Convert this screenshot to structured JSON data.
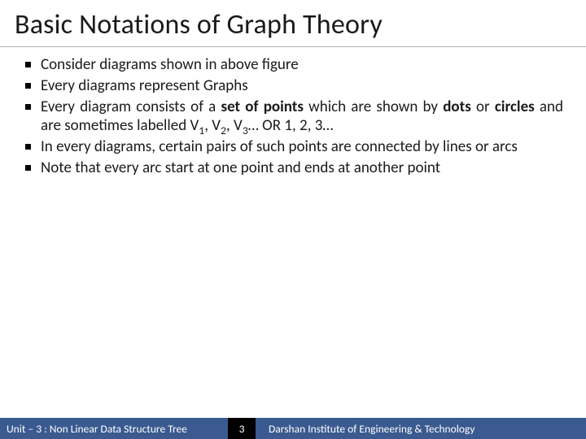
{
  "title": "Basic Notations of Graph Theory",
  "bullets": {
    "b1": "Consider diagrams shown in above figure",
    "b2": "Every diagrams represent Graphs",
    "b3_pre": "Every diagram consists of a ",
    "b3_bold1": "set of points",
    "b3_mid1": " which are shown by ",
    "b3_bold2": "dots",
    "b3_mid2": " or ",
    "b3_bold3": "circles",
    "b3_mid3": " and are sometimes labelled V",
    "b3_s1": "1",
    "b3_c1": ", V",
    "b3_s2": "2",
    "b3_c2": ", V",
    "b3_s3": "3",
    "b3_tail": "… OR 1, 2, 3…",
    "b4": "In every diagrams, certain pairs of such points are connected by lines or arcs",
    "b5": "Note that every arc start at one point and ends at another point"
  },
  "footer": {
    "unit": "Unit – 3 : Non Linear Data Structure  Tree",
    "page": "3",
    "org": "Darshan Institute of Engineering & Technology"
  }
}
